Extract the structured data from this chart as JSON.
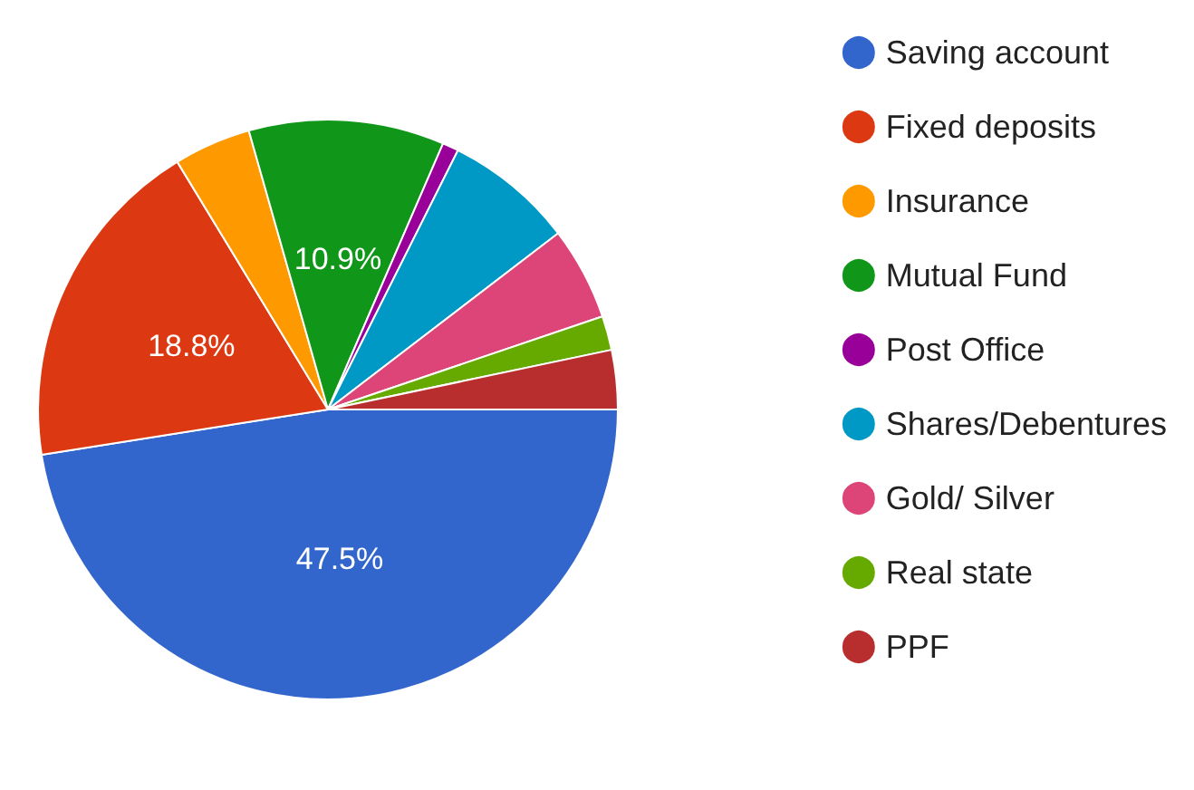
{
  "chart_data": {
    "type": "pie",
    "categories": [
      "Saving account",
      "Fixed deposits",
      "Insurance",
      "Mutual Fund",
      "Post Office",
      "Shares/Debentures",
      "Gold/ Silver",
      "Real state",
      "PPF"
    ],
    "values": [
      47.5,
      18.8,
      4.3,
      10.9,
      0.9,
      7.2,
      5.2,
      1.9,
      3.3
    ],
    "value_labels": [
      "47.5%",
      "18.8%",
      null,
      "10.9%",
      null,
      null,
      null,
      null,
      null
    ],
    "colors": [
      "#3366cc",
      "#dc3912",
      "#ff9900",
      "#109618",
      "#990099",
      "#0099c6",
      "#dd4477",
      "#66aa00",
      "#b82e2e"
    ],
    "legend": "right"
  }
}
